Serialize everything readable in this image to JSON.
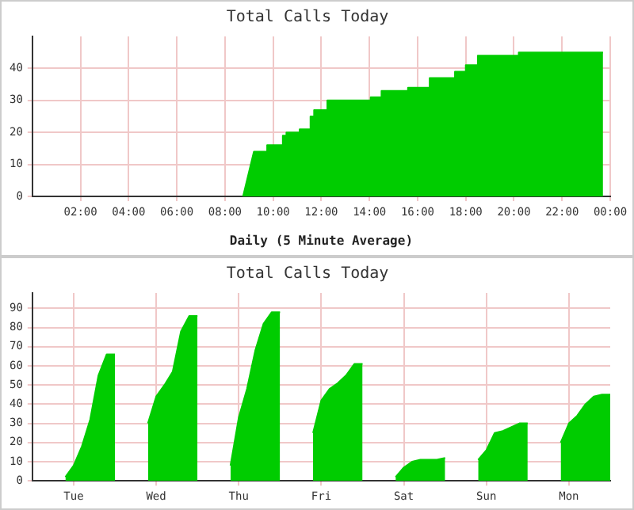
{
  "chart_data": [
    {
      "type": "area",
      "title": "Total Calls Today",
      "xlabel": "Daily (5 Minute Average)",
      "color": "#00cc00",
      "grid": true,
      "x": [
        8.75,
        9.2,
        9.75,
        9.75,
        10.4,
        10.4,
        10.55,
        10.55,
        11.1,
        11.1,
        11.55,
        11.55,
        11.7,
        11.7,
        12.25,
        12.25,
        14.05,
        14.05,
        14.5,
        14.5,
        15.6,
        15.6,
        16.5,
        16.5,
        17.55,
        17.55,
        18.0,
        18.0,
        18.5,
        18.5,
        20.2,
        20.2,
        23.7
      ],
      "values": [
        0,
        14,
        14,
        16,
        16,
        19,
        19,
        20,
        20,
        21,
        21,
        25,
        25,
        27,
        27,
        30,
        30,
        31,
        31,
        33,
        33,
        34,
        34,
        37,
        37,
        39,
        39,
        41,
        41,
        44,
        44,
        45,
        45
      ],
      "xlim": [
        0,
        24
      ],
      "xticks": [
        {
          "value": 2,
          "label": "02:00"
        },
        {
          "value": 4,
          "label": "04:00"
        },
        {
          "value": 6,
          "label": "06:00"
        },
        {
          "value": 8,
          "label": "08:00"
        },
        {
          "value": 10,
          "label": "10:00"
        },
        {
          "value": 12,
          "label": "12:00"
        },
        {
          "value": 14,
          "label": "14:00"
        },
        {
          "value": 16,
          "label": "16:00"
        },
        {
          "value": 18,
          "label": "18:00"
        },
        {
          "value": 20,
          "label": "20:00"
        },
        {
          "value": 22,
          "label": "22:00"
        },
        {
          "value": 24,
          "label": "00:00"
        }
      ],
      "ylim": [
        0,
        50
      ],
      "yticks": [
        0,
        10,
        20,
        30,
        40
      ]
    },
    {
      "type": "area",
      "title": "Total Calls Today",
      "color": "#00cc00",
      "grid": true,
      "categories": [
        null,
        null,
        null,
        null,
        null,
        "Tue",
        null,
        null,
        null,
        null,
        null,
        null,
        null,
        null,
        null,
        "Wed",
        null,
        null,
        null,
        null,
        null,
        null,
        null,
        null,
        null,
        "Thu",
        null,
        null,
        null,
        null,
        null,
        null,
        null,
        null,
        null,
        "Fri",
        null,
        null,
        null,
        null,
        null,
        null,
        null,
        null,
        null,
        "Sat",
        null,
        null,
        null,
        null,
        null,
        null,
        null,
        null,
        null,
        "Sun",
        null,
        null,
        null,
        null,
        null,
        null,
        null,
        null,
        null,
        "Mon",
        null,
        null,
        null,
        null,
        null
      ],
      "values": [
        null,
        null,
        null,
        null,
        2,
        8,
        18,
        32,
        55,
        66,
        66,
        null,
        null,
        null,
        30,
        44,
        50,
        57,
        78,
        86,
        86,
        null,
        null,
        null,
        8,
        33,
        48,
        68,
        82,
        88,
        88,
        null,
        null,
        null,
        25,
        42,
        48,
        51,
        55,
        61,
        61,
        null,
        null,
        null,
        2,
        7,
        10,
        11,
        11,
        11,
        12,
        null,
        null,
        null,
        11,
        16,
        25,
        26,
        28,
        30,
        30,
        null,
        null,
        null,
        20,
        30,
        34,
        40,
        44,
        45,
        45
      ],
      "ylim": [
        0,
        98
      ],
      "yticks": [
        0,
        10,
        20,
        30,
        40,
        50,
        60,
        70,
        80,
        90
      ]
    }
  ]
}
